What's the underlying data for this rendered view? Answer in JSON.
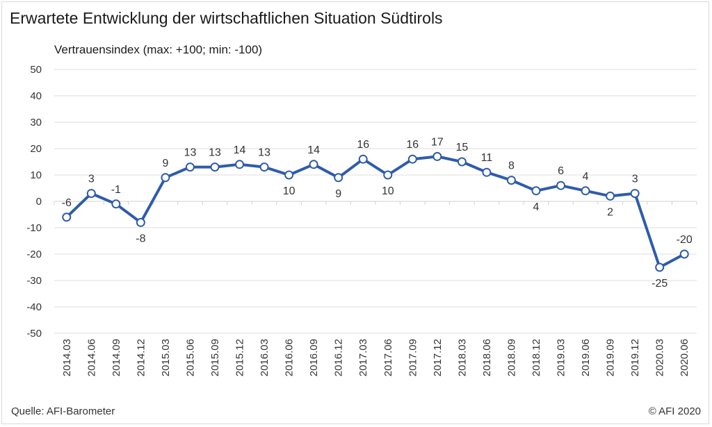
{
  "header": {
    "title": "Erwartete Entwicklung der wirtschaftlichen Situation Südtirols",
    "subtitle": "Vertrauensindex (max: +100; min: -100)"
  },
  "footer": {
    "source": "Quelle: AFI-Barometer",
    "copyright": "© AFI 2020"
  },
  "chart_data": {
    "type": "line",
    "title": "Erwartete Entwicklung der wirtschaftlichen Situation Südtirols",
    "ylabel": "Vertrauensindex (max: +100; min: -100)",
    "ylim": [
      -50,
      50
    ],
    "yticks": [
      50,
      40,
      30,
      20,
      10,
      0,
      -10,
      -20,
      -30,
      -40,
      -50
    ],
    "grid": true,
    "categories": [
      "2014.03",
      "2014.06",
      "2014.09",
      "2014.12",
      "2015.03",
      "2015.06",
      "2015.09",
      "2015.12",
      "2016.03",
      "2016.06",
      "2016.09",
      "2016.12",
      "2017.03",
      "2017.06",
      "2017.09",
      "2017.12",
      "2018.03",
      "2018.06",
      "2018.09",
      "2018.12",
      "2019.03",
      "2019.06",
      "2019.09",
      "2019.12",
      "2020.03",
      "2020.06"
    ],
    "values": [
      -6,
      3,
      -1,
      -8,
      9,
      13,
      13,
      14,
      13,
      10,
      14,
      9,
      16,
      10,
      16,
      17,
      15,
      11,
      8,
      4,
      6,
      4,
      2,
      3,
      -25,
      -20
    ],
    "line_color": "#2e5caa"
  }
}
